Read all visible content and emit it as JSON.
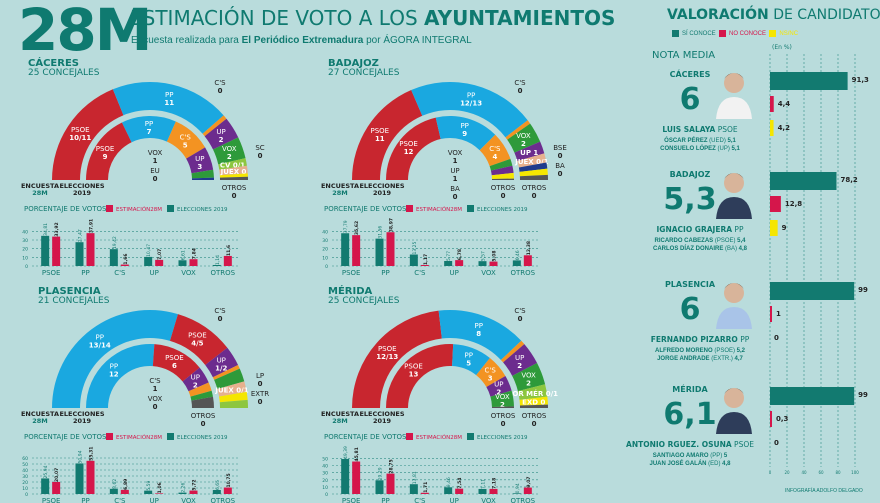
{
  "header": {
    "big_label": "28M",
    "title_regular": "ESTIMACIÓN DE VOTO A LOS ",
    "title_bold": "AYUNTAMIENTOS",
    "subtitle_pre": "Encuesta realizada para ",
    "subtitle_bold": "El Periódico Extremadura",
    "subtitle_post": " por ÁGORA INTEGRAL"
  },
  "colors": {
    "teal": "#127a70",
    "crimson": "#d5164b",
    "psoe": "#c8262f",
    "pp": "#1aa8e0",
    "cs": "#f39322",
    "up": "#6c2c8e",
    "vox": "#2e9a3a",
    "cv": "#8dc63f",
    "juex": "#e6b08e",
    "otros": "#555555",
    "yellow": "#f5e600",
    "eu": "#1f3b8c",
    "bg": "#b9dcdc"
  },
  "common": {
    "encuesta_label": "ENCUESTA",
    "encuesta_sub": "28M",
    "elecciones_label": "ELECCIONES",
    "elecciones_sub": "2019",
    "pct_title": "PORCENTAJE DE VOTOS",
    "legend_estimacion": "ESTIMACIÓN",
    "legend_estimacion_bold": "28M",
    "legend_elecciones": "ELECCIONES 2019"
  },
  "chart_data": [
    {
      "type": "bar",
      "title": "CÁCERES — PORCENTAJE DE VOTOS",
      "city": "CÁCERES",
      "seats_label": "25 CONCEJALES",
      "categories": [
        "PSOE",
        "PP",
        "C'S",
        "UP",
        "VOX",
        "OTROS"
      ],
      "series": [
        {
          "name": "ELECCIONES 2019",
          "values": [
            34.81,
            27.47,
            19.42,
            10.47,
            6.61,
            1.14
          ]
        },
        {
          "name": "ESTIMACIÓN 28M",
          "values": [
            33.92,
            37.91,
            1.66,
            7.07,
            7.84,
            11.6
          ]
        }
      ],
      "value_labels_2019": [
        "34,81",
        "27,47",
        "19,42",
        "10,47",
        "6,61",
        "1,14"
      ],
      "value_labels_28m": [
        "33,92",
        "37,91",
        "1,66",
        "7,07",
        "7,84",
        "11,6"
      ],
      "yticks": [
        0,
        10,
        20,
        30,
        40
      ],
      "ylim": [
        0,
        45
      ],
      "hemicycle": {
        "outer": [
          {
            "party": "PSOE",
            "seats": "10/11",
            "w": 10.5,
            "color": "psoe"
          },
          {
            "party": "PP",
            "seats": "11",
            "w": 11,
            "color": "pp"
          },
          {
            "party": "C'S",
            "seats": "0",
            "w": 0.4,
            "color": "cs",
            "callout": true
          },
          {
            "party": "UP",
            "seats": "2",
            "w": 2,
            "color": "up"
          },
          {
            "party": "VOX",
            "seats": "2",
            "w": 2,
            "color": "vox"
          },
          {
            "party": "CV",
            "seats": "0/1",
            "w": 0.7,
            "color": "cv",
            "inline": "CV 0/1"
          },
          {
            "party": "JUEX",
            "seats": "0",
            "w": 0.7,
            "color": "juex",
            "inline": "JUEX 0"
          },
          {
            "party": "SC",
            "seats": "0",
            "w": 0.3,
            "color": "yellow",
            "callout": true
          },
          {
            "party": "OTROS",
            "seats": "0",
            "w": 0.3,
            "color": "otros",
            "below": true
          }
        ],
        "inner": [
          {
            "party": "PSOE",
            "seats": "9",
            "w": 9,
            "color": "psoe"
          },
          {
            "party": "PP",
            "seats": "7",
            "w": 7,
            "color": "pp"
          },
          {
            "party": "C'S",
            "seats": "5",
            "w": 5,
            "color": "cs"
          },
          {
            "party": "UP",
            "seats": "3",
            "w": 3,
            "color": "up"
          },
          {
            "party": "VOX",
            "seats": "1",
            "w": 1,
            "color": "vox",
            "callout": true
          },
          {
            "party": "EU",
            "seats": "0",
            "w": 0.3,
            "color": "eu",
            "callout": true
          }
        ]
      }
    },
    {
      "type": "bar",
      "title": "BADAJOZ — PORCENTAJE DE VOTOS",
      "city": "BADAJOZ",
      "seats_label": "27 CONCEJALES",
      "categories": [
        "PSOE",
        "PP",
        "C'S",
        "UP",
        "VOX",
        "OTROS"
      ],
      "series": [
        {
          "name": "ELECCIONES 2019",
          "values": [
            37.79,
            31.56,
            13.25,
            5.77,
            5.57,
            6.46
          ]
        },
        {
          "name": "ESTIMACIÓN 28M",
          "values": [
            35.62,
            38.97,
            1.17,
            6.78,
            5.08,
            12.38
          ]
        }
      ],
      "value_labels_2019": [
        "37,79",
        "31,56",
        "13,25",
        "5,77",
        "5,57",
        "6,46"
      ],
      "value_labels_28m": [
        "35,62",
        "38,97",
        "1,17",
        "6,78",
        "5,08",
        "12,38"
      ],
      "yticks": [
        0,
        10,
        20,
        30,
        40
      ],
      "ylim": [
        0,
        45
      ],
      "hemicycle": {
        "outer": [
          {
            "party": "PSOE",
            "seats": "11",
            "w": 11,
            "color": "psoe"
          },
          {
            "party": "PP",
            "seats": "12/13",
            "w": 12.5,
            "color": "pp"
          },
          {
            "party": "C'S",
            "seats": "0",
            "w": 0.4,
            "color": "cs",
            "callout": true
          },
          {
            "party": "VOX",
            "seats": "2",
            "w": 2,
            "color": "vox"
          },
          {
            "party": "UP",
            "seats": "1",
            "w": 1.2,
            "color": "up",
            "inline": "UP 1"
          },
          {
            "party": "JUEX",
            "seats": "0/1",
            "w": 0.9,
            "color": "juex",
            "inline": "JUEX 0/1"
          },
          {
            "party": "BSE",
            "seats": "0",
            "w": 0.6,
            "color": "eu",
            "callout": true
          },
          {
            "party": "BA",
            "seats": "0",
            "w": 0.6,
            "color": "yellow",
            "callout": true
          },
          {
            "party": "OTROS",
            "seats": "0",
            "w": 0.5,
            "color": "otros",
            "below": true
          }
        ],
        "inner": [
          {
            "party": "PSOE",
            "seats": "12",
            "w": 12,
            "color": "psoe"
          },
          {
            "party": "PP",
            "seats": "9",
            "w": 9,
            "color": "pp"
          },
          {
            "party": "C'S",
            "seats": "4",
            "w": 4,
            "color": "cs"
          },
          {
            "party": "VOX",
            "seats": "1",
            "w": 1,
            "color": "vox",
            "callout": true
          },
          {
            "party": "UP",
            "seats": "1",
            "w": 1,
            "color": "up",
            "callout": true
          },
          {
            "party": "BA",
            "seats": "0",
            "w": 0.8,
            "color": "yellow",
            "callout": true
          },
          {
            "party": "OTROS",
            "seats": "0",
            "w": 0.2,
            "color": "otros",
            "below": true
          }
        ]
      }
    },
    {
      "type": "bar",
      "title": "PLASENCIA — PORCENTAJE DE VOTOS",
      "city": "PLASENCIA",
      "seats_label": "21 CONCEJALES",
      "categories": [
        "PSOE",
        "PP",
        "C'S",
        "UP",
        "VOX",
        "OTROS"
      ],
      "series": [
        {
          "name": "ELECCIONES 2019",
          "values": [
            25.94,
            50.94,
            8.62,
            5.59,
            2.26,
            6.65
          ]
        },
        {
          "name": "ESTIMACIÓN 28M",
          "values": [
            20.07,
            55.31,
            6.89,
            1.06,
            5.72,
            10.75
          ]
        }
      ],
      "value_labels_2019": [
        "25,94",
        "50,94",
        "8,62",
        "5,59",
        "2,26",
        "6,65"
      ],
      "value_labels_28m": [
        "20,07",
        "55,31",
        "6,89",
        "1,06",
        "5,72",
        "10,75"
      ],
      "yticks": [
        0,
        10,
        20,
        30,
        40,
        50,
        60
      ],
      "ylim": [
        0,
        65
      ],
      "hemicycle": {
        "outer": [
          {
            "party": "PP",
            "seats": "13/14",
            "w": 13.5,
            "color": "pp"
          },
          {
            "party": "PSOE",
            "seats": "4/5",
            "w": 4.5,
            "color": "psoe"
          },
          {
            "party": "UP",
            "seats": "1/2",
            "w": 1.5,
            "color": "up"
          },
          {
            "party": "C'S",
            "seats": "0",
            "w": 0.3,
            "color": "cs",
            "callout": true
          },
          {
            "party": "VOX",
            "seats": "1",
            "w": 1,
            "color": "vox"
          },
          {
            "party": "JUEX",
            "seats": "0/1",
            "w": 0.8,
            "color": "juex",
            "inline": "JUEX 0/1"
          },
          {
            "party": "LP",
            "seats": "0",
            "w": 0.6,
            "color": "yellow",
            "callout": true
          },
          {
            "party": "EXTR",
            "seats": "0",
            "w": 0.6,
            "color": "cv",
            "callout": true
          }
        ],
        "inner": [
          {
            "party": "PP",
            "seats": "12",
            "w": 12,
            "color": "pp"
          },
          {
            "party": "PSOE",
            "seats": "6",
            "w": 6,
            "color": "psoe"
          },
          {
            "party": "UP",
            "seats": "2",
            "w": 2,
            "color": "up"
          },
          {
            "party": "C'S",
            "seats": "1",
            "w": 1,
            "color": "cs",
            "callout": true
          },
          {
            "party": "VOX",
            "seats": "0",
            "w": 0.7,
            "color": "vox",
            "callout": true
          },
          {
            "party": "OTROS",
            "seats": "0",
            "w": 1.3,
            "color": "otros",
            "below": true
          }
        ]
      }
    },
    {
      "type": "bar",
      "title": "MÉRIDA — PORCENTAJE DE VOTOS",
      "city": "MÉRIDA",
      "seats_label": "25 CONCEJALES",
      "categories": [
        "PSOE",
        "PP",
        "C'S",
        "UP",
        "VOX",
        "OTROS"
      ],
      "series": [
        {
          "name": "ELECCIONES 2019",
          "values": [
            49.39,
            19.29,
            13.81,
            9.46,
            7.11,
            0.94
          ]
        },
        {
          "name": "ESTIMACIÓN 28M",
          "values": [
            45.81,
            28.75,
            1.71,
            7.54,
            7.18,
            9.07
          ]
        }
      ],
      "value_labels_2019": [
        "49,39",
        "19,29",
        "13,81",
        "9,46",
        "7,11",
        "0,94"
      ],
      "value_labels_28m": [
        "45,81",
        "28,75",
        "1,71",
        "7,54",
        "7,18",
        "9,07"
      ],
      "yticks": [
        0,
        10,
        20,
        30,
        40,
        50
      ],
      "ylim": [
        0,
        55
      ],
      "hemicycle": {
        "outer": [
          {
            "party": "PSOE",
            "seats": "12/13",
            "w": 12.5,
            "color": "psoe"
          },
          {
            "party": "PP",
            "seats": "8",
            "w": 8,
            "color": "pp"
          },
          {
            "party": "C'S",
            "seats": "0",
            "w": 0.4,
            "color": "cs",
            "callout": true
          },
          {
            "party": "UP",
            "seats": "2",
            "w": 2,
            "color": "up"
          },
          {
            "party": "VOX",
            "seats": "2",
            "w": 2,
            "color": "vox"
          },
          {
            "party": "POR MÉR",
            "seats": "0/1",
            "w": 1.1,
            "color": "cv",
            "inline": "POR MÉR 0/1"
          },
          {
            "party": "EXD",
            "seats": "0",
            "w": 0.7,
            "color": "yellow",
            "inline": "EXD 0"
          },
          {
            "party": "OTROS",
            "seats": "0",
            "w": 0.3,
            "color": "otros",
            "below": true
          }
        ],
        "inner": [
          {
            "party": "PSOE",
            "seats": "13",
            "w": 13,
            "color": "psoe"
          },
          {
            "party": "PP",
            "seats": "5",
            "w": 5,
            "color": "pp"
          },
          {
            "party": "C'S",
            "seats": "3",
            "w": 3,
            "color": "cs"
          },
          {
            "party": "UP",
            "seats": "2",
            "w": 2,
            "color": "up"
          },
          {
            "party": "VOX",
            "seats": "2",
            "w": 2,
            "color": "vox"
          },
          {
            "party": "OTROS",
            "seats": "0",
            "w": 0.2,
            "color": "otros",
            "below": true
          }
        ]
      }
    }
  ],
  "valoracion": {
    "title_bold": "VALORACIÓN",
    "title_regular": " DE CANDIDATOS",
    "legend": [
      "SÍ CONOCE",
      "NO CONOCE",
      "NS/NC"
    ],
    "nota_media_label": "NOTA MEDIA",
    "unit_label": "(En %)",
    "xticks": [
      0,
      20,
      40,
      60,
      80,
      100
    ],
    "candidates": [
      {
        "city": "CÁCERES",
        "score": "6",
        "name": "LUIS SALAYA",
        "party": "PSOE",
        "others": [
          {
            "name": "ÓSCAR PÉREZ",
            "party": "(UED)",
            "score": "5,1"
          },
          {
            "name": "CONSUELO LÓPEZ",
            "party": "(UP)",
            "score": "5,1"
          }
        ],
        "bars": [
          91.3,
          4.4,
          4.2
        ],
        "bar_labels": [
          "91,3",
          "4,4",
          "4,2"
        ]
      },
      {
        "city": "BADAJOZ",
        "score": "5,3",
        "name": "IGNACIO GRAJERA",
        "party": "PP",
        "others": [
          {
            "name": "RICARDO CABEZAS",
            "party": "(PSOE)",
            "score": "5,4"
          },
          {
            "name": "CARLOS DÍAZ DONAIRE",
            "party": "(BA)",
            "score": "4,8"
          }
        ],
        "bars": [
          78.2,
          12.8,
          9
        ],
        "bar_labels": [
          "78,2",
          "12,8",
          "9"
        ]
      },
      {
        "city": "PLASENCIA",
        "score": "6",
        "name": "FERNANDO PIZARRO",
        "party": "PP",
        "others": [
          {
            "name": "ALFREDO MORENO",
            "party": "(PSOE)",
            "score": "5,2"
          },
          {
            "name": "JORGE ANDRADE",
            "party": "(EXTR.)",
            "score": "4,7"
          }
        ],
        "bars": [
          99,
          1,
          0
        ],
        "bar_labels": [
          "99",
          "1",
          "0"
        ]
      },
      {
        "city": "MÉRIDA",
        "score": "6,1",
        "name": "ANTONIO RGUEZ. OSUNA",
        "party": "PSOE",
        "others": [
          {
            "name": "SANTIAGO AMARO",
            "party": "(PP)",
            "score": "5"
          },
          {
            "name": "JUAN JOSÉ GALÁN",
            "party": "(ED)",
            "score": "4,8"
          }
        ],
        "bars": [
          99,
          0.3,
          0
        ],
        "bar_labels": [
          "99",
          "0,3",
          "0"
        ]
      }
    ],
    "credit": "INFOGRAFÍA ADOLFO DELGADO"
  }
}
